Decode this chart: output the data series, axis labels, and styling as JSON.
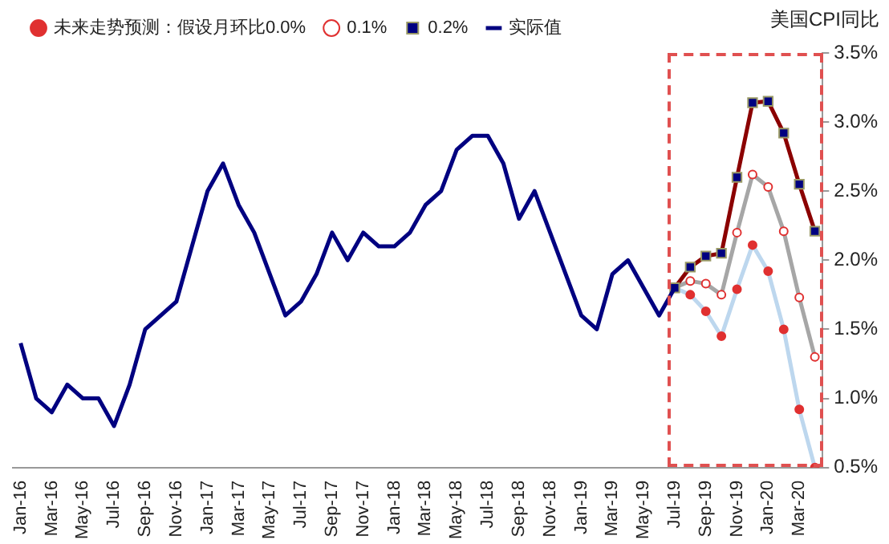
{
  "chart_data": {
    "type": "line",
    "ylabel": "美国CPI同比",
    "categories": [
      "Jan-16",
      null,
      "Mar-16",
      null,
      "May-16",
      null,
      "Jul-16",
      null,
      "Sep-16",
      null,
      "Nov-16",
      null,
      "Jan-17",
      null,
      "Mar-17",
      null,
      "May-17",
      null,
      "Jul-17",
      null,
      "Sep-17",
      null,
      "Nov-17",
      null,
      "Jan-18",
      null,
      "Mar-18",
      null,
      "May-18",
      null,
      "Jul-18",
      null,
      "Sep-18",
      null,
      "Nov-18",
      null,
      "Jan-19",
      null,
      "Mar-19",
      null,
      "May-19",
      null,
      "Jul-19",
      null,
      "Sep-19",
      null,
      "Nov-19",
      null,
      "Jan-20",
      null,
      "Mar-20",
      null
    ],
    "series": [
      {
        "name": "未来走势预测：假设月环比0.0%",
        "color": "#bdd7ee",
        "marker": "circle",
        "values": [
          null,
          null,
          null,
          null,
          null,
          null,
          null,
          null,
          null,
          null,
          null,
          null,
          null,
          null,
          null,
          null,
          null,
          null,
          null,
          null,
          null,
          null,
          null,
          null,
          null,
          null,
          null,
          null,
          null,
          null,
          null,
          null,
          null,
          null,
          null,
          null,
          null,
          null,
          null,
          null,
          null,
          null,
          1.8,
          1.75,
          1.63,
          1.45,
          1.79,
          2.11,
          1.92,
          1.5,
          0.92,
          0.5
        ]
      },
      {
        "name": "0.1%",
        "color": "#a6a6a6",
        "marker": "circle",
        "values": [
          null,
          null,
          null,
          null,
          null,
          null,
          null,
          null,
          null,
          null,
          null,
          null,
          null,
          null,
          null,
          null,
          null,
          null,
          null,
          null,
          null,
          null,
          null,
          null,
          null,
          null,
          null,
          null,
          null,
          null,
          null,
          null,
          null,
          null,
          null,
          null,
          null,
          null,
          null,
          null,
          null,
          null,
          1.8,
          1.85,
          1.83,
          1.75,
          2.2,
          2.62,
          2.53,
          2.21,
          1.73,
          1.3
        ]
      },
      {
        "name": "0.2%",
        "color": "#8b0000",
        "marker": "square",
        "values": [
          null,
          null,
          null,
          null,
          null,
          null,
          null,
          null,
          null,
          null,
          null,
          null,
          null,
          null,
          null,
          null,
          null,
          null,
          null,
          null,
          null,
          null,
          null,
          null,
          null,
          null,
          null,
          null,
          null,
          null,
          null,
          null,
          null,
          null,
          null,
          null,
          null,
          null,
          null,
          null,
          null,
          null,
          1.8,
          1.95,
          2.03,
          2.05,
          2.6,
          3.14,
          3.15,
          2.92,
          2.55,
          2.21
        ]
      },
      {
        "name": "实际值",
        "color": "#000080",
        "marker": "none",
        "values": [
          1.4,
          1.0,
          0.9,
          1.1,
          1.0,
          1.0,
          0.8,
          1.1,
          1.5,
          1.6,
          1.7,
          2.1,
          2.5,
          2.7,
          2.4,
          2.2,
          1.9,
          1.6,
          1.7,
          1.9,
          2.2,
          2.0,
          2.2,
          2.1,
          2.1,
          2.2,
          2.4,
          2.5,
          2.8,
          2.9,
          2.9,
          2.7,
          2.3,
          2.5,
          2.2,
          1.9,
          1.6,
          1.5,
          1.9,
          2.0,
          1.8,
          1.6,
          1.8,
          null,
          null,
          null,
          null,
          null,
          null,
          null,
          null,
          null
        ]
      }
    ],
    "ylim": [
      0.5,
      3.5
    ],
    "yticks": [
      {
        "value": 0.5,
        "label": "0.5%"
      },
      {
        "value": 1.0,
        "label": "1.0%"
      },
      {
        "value": 1.5,
        "label": "1.5%"
      },
      {
        "value": 2.0,
        "label": "2.0%"
      },
      {
        "value": 2.5,
        "label": "2.5%"
      },
      {
        "value": 3.0,
        "label": "3.0%"
      },
      {
        "value": 3.5,
        "label": "3.5%"
      }
    ],
    "grid": false,
    "legend": "top"
  }
}
